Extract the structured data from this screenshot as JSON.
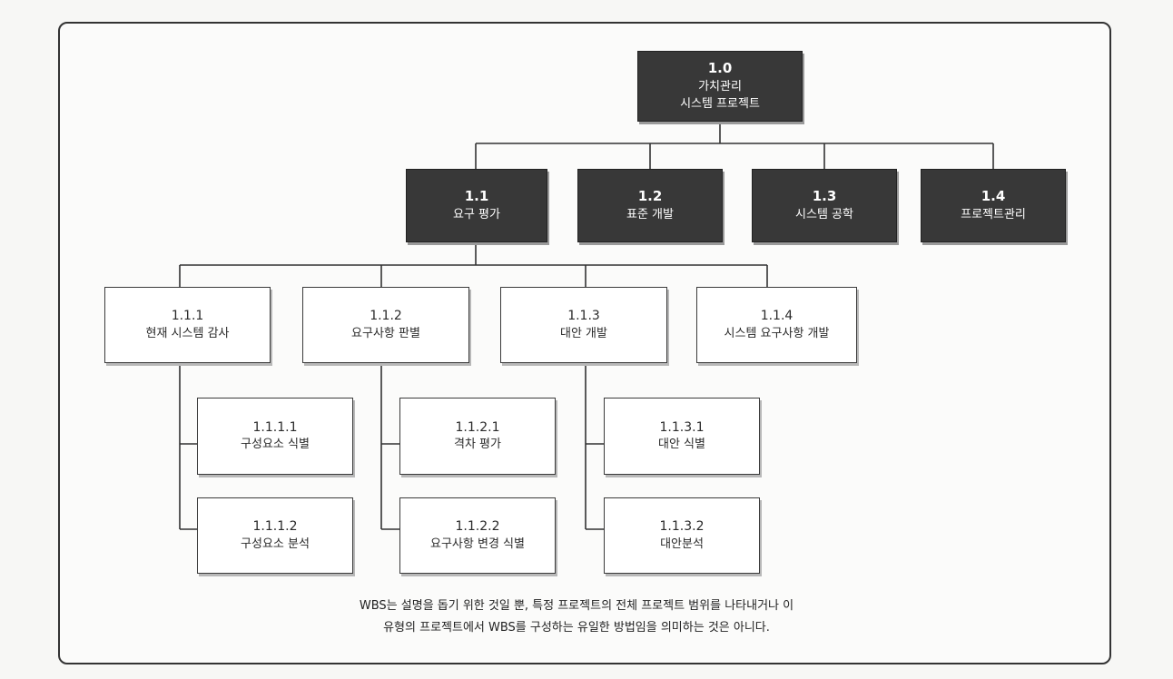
{
  "root": {
    "code": "1.0",
    "title_line1": "가치관리",
    "title_line2": "시스템 프로젝트"
  },
  "level1": [
    {
      "code": "1.1",
      "title": "요구 평가"
    },
    {
      "code": "1.2",
      "title": "표준 개발"
    },
    {
      "code": "1.3",
      "title": "시스템 공학"
    },
    {
      "code": "1.4",
      "title": "프로젝트관리"
    }
  ],
  "level2": [
    {
      "code": "1.1.1",
      "title": "현재 시스템 감사"
    },
    {
      "code": "1.1.2",
      "title": "요구사항 판별"
    },
    {
      "code": "1.1.3",
      "title": "대안 개발"
    },
    {
      "code": "1.1.4",
      "title": "시스템 요구사항 개발"
    }
  ],
  "level3": [
    {
      "code": "1.1.1.1",
      "title": "구성요소 식별"
    },
    {
      "code": "1.1.1.2",
      "title": "구성요소 분석"
    },
    {
      "code": "1.1.2.1",
      "title": "격차 평가"
    },
    {
      "code": "1.1.2.2",
      "title": "요구사항 변경 식별"
    },
    {
      "code": "1.1.3.1",
      "title": "대안 식별"
    },
    {
      "code": "1.1.3.2",
      "title": "대안분석"
    }
  ],
  "caption": {
    "line1": "WBS는 설명을 돕기 위한 것일 뿐, 특정 프로젝트의 전체 프로젝트 범위를 나타내거나 이",
    "line2": "유형의 프로젝트에서 WBS를 구성하는 유일한 방법임을 의미하는 것은 아니다."
  },
  "colors": {
    "dark_box": "#383838",
    "light_box": "#ffffff",
    "line": "#333333"
  }
}
